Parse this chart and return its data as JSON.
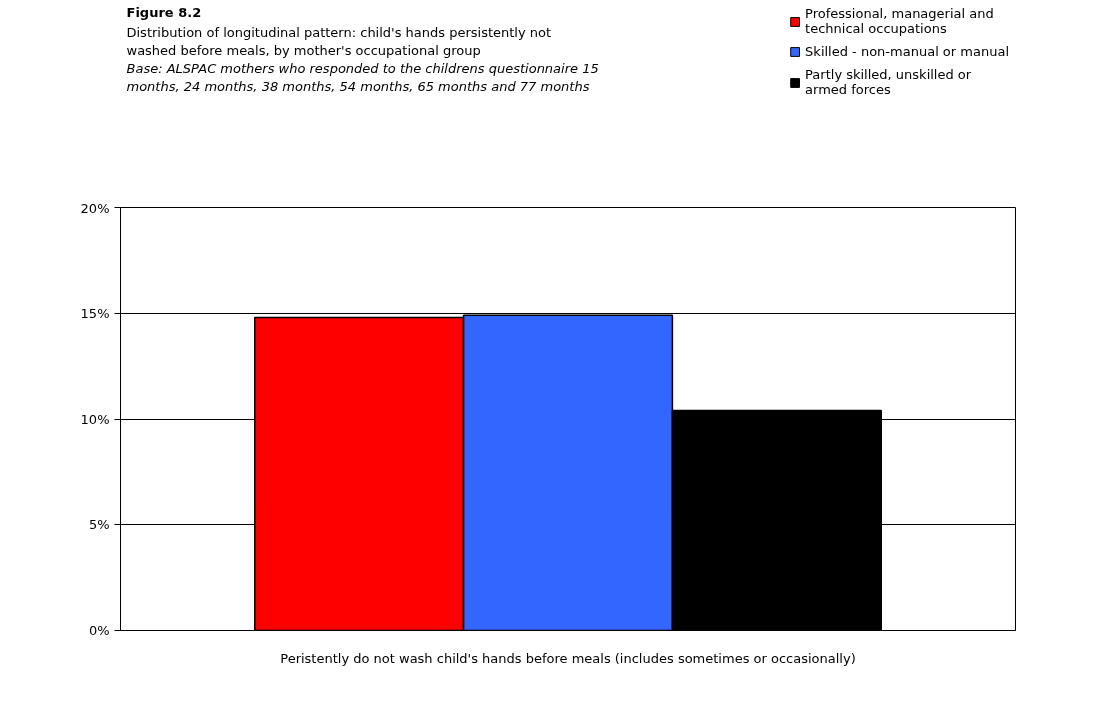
{
  "chart_data": {
    "type": "bar",
    "title": "Figure 8.2",
    "subtitle": "Distribution of longitudinal pattern: child's hands persistently not washed before meals, by mother's occupational group",
    "annotations": [
      "Base: ALSPAC mothers who responded to the childrens questionnaire 15 months, 24 months, 38 months, 54 months, 65 months and 77 months"
    ],
    "categories": [
      "Peristently do not wash child's hands before meals (includes sometimes or occasionally)"
    ],
    "series": [
      {
        "name": "Professional, managerial and technical occupations",
        "color": "#ff0000",
        "values": [
          14.8
        ]
      },
      {
        "name": "Skilled - non-manual or manual",
        "color": "#3366ff",
        "values": [
          14.9
        ]
      },
      {
        "name": "Partly skilled, unskilled or armed forces",
        "color": "#000000",
        "values": [
          10.4
        ]
      }
    ],
    "ylim": [
      0,
      20
    ],
    "yticks": [
      {
        "value": 0,
        "label": "0%"
      },
      {
        "value": 5,
        "label": "5%"
      },
      {
        "value": 10,
        "label": "10%"
      },
      {
        "value": 15,
        "label": "15%"
      },
      {
        "value": 20,
        "label": "20%"
      }
    ],
    "grid": "y",
    "legend": "top right"
  }
}
